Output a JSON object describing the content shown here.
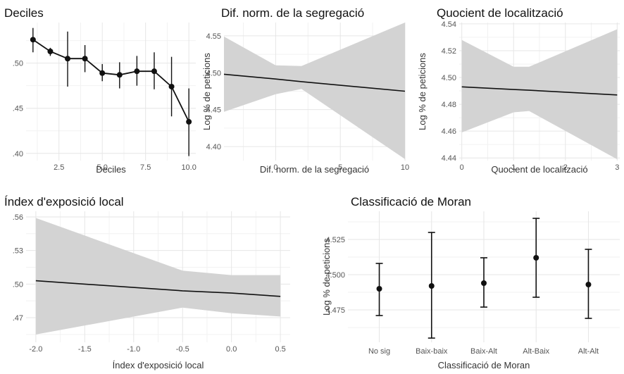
{
  "chart_data": [
    {
      "id": "deciles",
      "type": "line",
      "title": "Deciles",
      "xlabel": "Deciles",
      "ylabel": "",
      "xlim": [
        0.6,
        10.4
      ],
      "ylim": [
        0.392,
        0.545
      ],
      "xticks": [
        2.5,
        5.0,
        7.5,
        10.0
      ],
      "xtick_labels": [
        "2.5",
        "5.0",
        "7.5",
        "10.0"
      ],
      "yticks": [
        0.4,
        0.45,
        0.5
      ],
      "ytick_labels": [
        ".40",
        ".45",
        ".50"
      ],
      "grid": true,
      "series": [
        {
          "x": [
            1,
            2,
            3,
            4,
            5,
            6,
            7,
            8,
            9,
            10
          ],
          "y": [
            0.526,
            0.513,
            0.505,
            0.505,
            0.489,
            0.487,
            0.491,
            0.491,
            0.474,
            0.435
          ],
          "lower": [
            0.512,
            0.508,
            0.474,
            0.49,
            0.48,
            0.472,
            0.475,
            0.471,
            0.441,
            0.397
          ],
          "upper": [
            0.539,
            0.517,
            0.535,
            0.52,
            0.499,
            0.501,
            0.508,
            0.512,
            0.507,
            0.472
          ]
        }
      ]
    },
    {
      "id": "dif-norm",
      "type": "line",
      "title": "Dif. norm. de la segregació",
      "xlabel": "Dif. norm. de la segregació",
      "ylabel": "Log % de peticions",
      "xlim": [
        -4,
        10
      ],
      "ylim": [
        4.381,
        4.568
      ],
      "xticks": [
        0,
        5,
        10
      ],
      "xtick_labels": [
        "0",
        "5",
        "10"
      ],
      "yticks": [
        4.4,
        4.45,
        4.5,
        4.55
      ],
      "ytick_labels": [
        "4.40",
        "4.45",
        "4.50",
        "4.55"
      ],
      "grid": true,
      "series": [
        {
          "x": [
            -4,
            0,
            2,
            10
          ],
          "y": [
            4.498,
            4.4915,
            4.488,
            4.475
          ],
          "lower": [
            4.447,
            4.471,
            4.478,
            4.383
          ],
          "upper": [
            4.549,
            4.51,
            4.509,
            4.568
          ]
        }
      ]
    },
    {
      "id": "quocient",
      "type": "line",
      "title": "Quocient de localització",
      "xlabel": "Quocient de localització",
      "ylabel": "Log % de peticions",
      "xlim": [
        -0.05,
        3.05
      ],
      "ylim": [
        4.438,
        4.541
      ],
      "xticks": [
        0,
        1,
        2,
        3
      ],
      "xtick_labels": [
        "0",
        "1",
        "2",
        "3"
      ],
      "yticks": [
        4.44,
        4.46,
        4.48,
        4.5,
        4.52,
        4.54
      ],
      "ytick_labels": [
        "4.44",
        "4.46",
        "4.48",
        "4.50",
        "4.52",
        "4.54"
      ],
      "grid": true,
      "series": [
        {
          "x": [
            0,
            1,
            1.3,
            3
          ],
          "y": [
            4.493,
            4.491,
            4.4905,
            4.487
          ],
          "lower": [
            4.459,
            4.474,
            4.475,
            4.439
          ],
          "upper": [
            4.528,
            4.508,
            4.508,
            4.536
          ]
        }
      ]
    },
    {
      "id": "exposicio",
      "type": "line",
      "title": "Índex d'exposició local",
      "xlabel": "Índex d'exposició local",
      "ylabel": "",
      "xlim": [
        -2.1,
        0.6
      ],
      "ylim": [
        0.448,
        0.565
      ],
      "xticks": [
        -2.0,
        -1.5,
        -1.0,
        -0.5,
        0.0,
        0.5
      ],
      "xtick_labels": [
        "-2.0",
        "-1.5",
        "-1.0",
        "-0.5",
        "0.0",
        "0.5"
      ],
      "yticks": [
        0.47,
        0.5,
        0.53,
        0.56
      ],
      "ytick_labels": [
        ".47",
        ".50",
        ".53",
        ".56"
      ],
      "grid": true,
      "series": [
        {
          "x": [
            -2.0,
            -0.5,
            0.0,
            0.5
          ],
          "y": [
            0.503,
            0.494,
            0.492,
            0.489
          ],
          "lower": [
            0.455,
            0.479,
            0.474,
            0.471
          ],
          "upper": [
            0.559,
            0.512,
            0.508,
            0.508
          ]
        }
      ]
    },
    {
      "id": "moran",
      "type": "scatter",
      "title": "Classificació de Moran",
      "xlabel": "Classificació de Moran",
      "ylabel": "Log % de peticions",
      "categories": [
        "No sig",
        "Baix-baix",
        "Baix-Alt",
        "Alt-Baix",
        "Alt-Alt"
      ],
      "ylim": [
        4.452,
        4.545
      ],
      "yticks": [
        4.475,
        4.5,
        4.525
      ],
      "ytick_labels": [
        "4.475",
        "4.500",
        "4.525"
      ],
      "grid": true,
      "series": [
        {
          "y": [
            4.49,
            4.492,
            4.494,
            4.512,
            4.493
          ],
          "lower": [
            4.471,
            4.455,
            4.477,
            4.484,
            4.469
          ],
          "upper": [
            4.508,
            4.53,
            4.512,
            4.54,
            4.518
          ]
        }
      ]
    }
  ]
}
